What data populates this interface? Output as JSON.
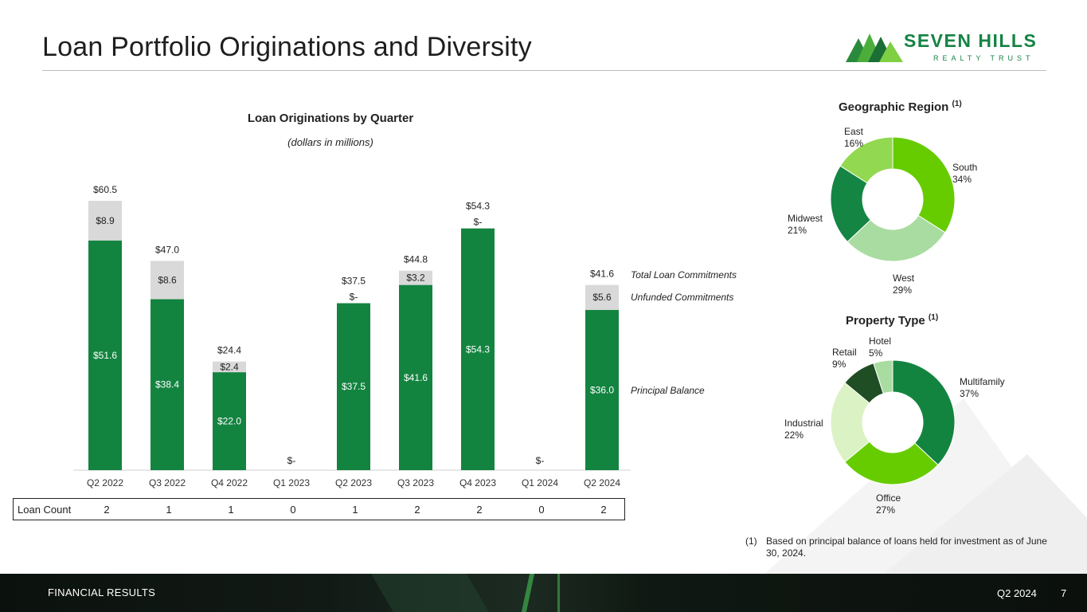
{
  "title": "Loan Portfolio Originations and Diversity",
  "logo": {
    "name": "SEVEN HILLS",
    "sub": "REALTY TRUST"
  },
  "chart_data": [
    {
      "type": "bar",
      "stacked": true,
      "title": "Loan Originations by Quarter",
      "subtitle": "(dollars in millions)",
      "categories": [
        "Q2 2022",
        "Q3 2022",
        "Q4 2022",
        "Q1 2023",
        "Q2 2023",
        "Q3 2023",
        "Q4 2023",
        "Q1 2024",
        "Q2 2024"
      ],
      "series": [
        {
          "name": "Principal Balance",
          "values": [
            51.6,
            38.4,
            22.0,
            0,
            37.5,
            41.6,
            54.3,
            0,
            36.0
          ],
          "labels": [
            "$51.6",
            "$38.4",
            "$22.0",
            "",
            "$37.5",
            "$41.6",
            "$54.3",
            "",
            "$36.0"
          ],
          "color": "#138440"
        },
        {
          "name": "Unfunded Commitments",
          "values": [
            8.9,
            8.6,
            2.4,
            0,
            0,
            3.2,
            0,
            0,
            5.6
          ],
          "labels": [
            "$8.9",
            "$8.6",
            "$2.4",
            "",
            "$-",
            "$3.2",
            "$-",
            "",
            "$5.6"
          ],
          "color": "#d9d9d9"
        }
      ],
      "totals": [
        60.5,
        47.0,
        24.4,
        0,
        37.5,
        44.8,
        54.3,
        0,
        41.6
      ],
      "total_labels": [
        "$60.5",
        "$47.0",
        "$24.4",
        "$-",
        "$37.5",
        "$44.8",
        "$54.3",
        "$-",
        "$41.6"
      ],
      "legend": [
        "Total Loan Commitments",
        "Unfunded Commitments",
        "Principal Balance"
      ],
      "ylim": [
        0,
        62
      ],
      "loan_count_label": "Loan Count",
      "loan_counts": [
        "2",
        "1",
        "1",
        "0",
        "1",
        "2",
        "2",
        "0",
        "2"
      ]
    },
    {
      "type": "pie",
      "title": "Geographic Region",
      "title_note": "(1)",
      "labels": [
        "South",
        "West",
        "Midwest",
        "East"
      ],
      "values": [
        34,
        29,
        21,
        16
      ],
      "value_labels": [
        "34%",
        "29%",
        "21%",
        "16%"
      ],
      "colors": [
        "#66cc00",
        "#a9dca0",
        "#148543",
        "#92d850"
      ]
    },
    {
      "type": "pie",
      "title": "Property Type",
      "title_note": "(1)",
      "labels": [
        "Multifamily",
        "Office",
        "Industrial",
        "Retail",
        "Hotel"
      ],
      "values": [
        37,
        27,
        22,
        9,
        5
      ],
      "value_labels": [
        "37%",
        "27%",
        "22%",
        "9%",
        "5%"
      ],
      "colors": [
        "#138440",
        "#66cc00",
        "#dbf2c4",
        "#1f4d24",
        "#a9dca0"
      ]
    }
  ],
  "footnote": {
    "num": "(1)",
    "text": "Based on principal balance of loans held for investment as of June 30, 2024."
  },
  "footer": {
    "section": "FINANCIAL RESULTS",
    "period": "Q2 2024",
    "page": "7"
  }
}
